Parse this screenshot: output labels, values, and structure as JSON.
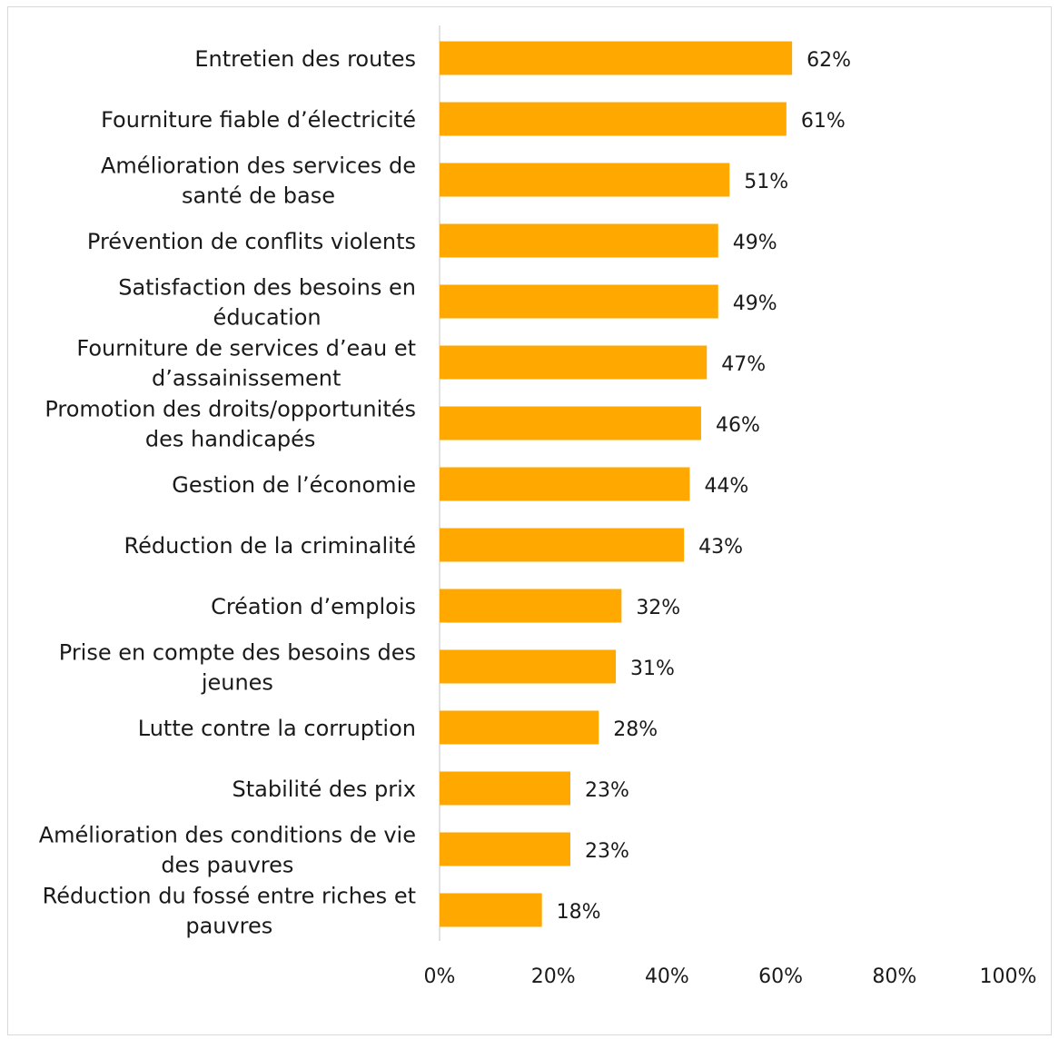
{
  "chart_data": {
    "type": "bar",
    "orientation": "horizontal",
    "categories": [
      "Entretien des routes",
      "Fourniture fiable d’électricité",
      "Amélioration des services de santé de base",
      "Prévention de conflits violents",
      "Satisfaction des besoins en éducation",
      "Fourniture de services d’eau et d’assainissement",
      "Promotion des droits/opportunités des handicapés",
      "Gestion de l’économie",
      "Réduction de la criminalité",
      "Création d’emplois",
      "Prise en compte des besoins des jeunes",
      "Lutte contre la corruption",
      "Stabilité des prix",
      "Amélioration des conditions de vie des pauvres",
      "Réduction du fossé entre riches et pauvres"
    ],
    "category_lines": [
      [
        "Entretien des routes"
      ],
      [
        "Fourniture fiable d’électricité"
      ],
      [
        "Amélioration des services de",
        "santé de base"
      ],
      [
        "Prévention de conflits violents"
      ],
      [
        "Satisfaction des besoins en",
        "éducation"
      ],
      [
        "Fourniture de services d’eau et",
        "d’assainissement"
      ],
      [
        "Promotion des droits/opportunités",
        "des handicapés"
      ],
      [
        "Gestion de l’économie"
      ],
      [
        "Réduction de la criminalité"
      ],
      [
        "Création d’emplois"
      ],
      [
        "Prise en compte des besoins des",
        "jeunes"
      ],
      [
        "Lutte contre la corruption"
      ],
      [
        "Stabilité des prix"
      ],
      [
        "Amélioration des conditions de vie",
        "des pauvres"
      ],
      [
        "Réduction du fossé entre riches et",
        "pauvres"
      ]
    ],
    "values": [
      62,
      61,
      51,
      49,
      49,
      47,
      46,
      44,
      43,
      32,
      31,
      28,
      23,
      23,
      18
    ],
    "value_labels": [
      "62%",
      "61%",
      "51%",
      "49%",
      "49%",
      "47%",
      "46%",
      "44%",
      "43%",
      "32%",
      "31%",
      "28%",
      "23%",
      "23%",
      "18%"
    ],
    "xlim": [
      0,
      100
    ],
    "x_ticks": [
      0,
      20,
      40,
      60,
      80,
      100
    ],
    "x_tick_labels": [
      "0%",
      "20%",
      "40%",
      "60%",
      "80%",
      "100%"
    ],
    "grid": false,
    "legend": "none",
    "bar_color": "#FFA800"
  }
}
